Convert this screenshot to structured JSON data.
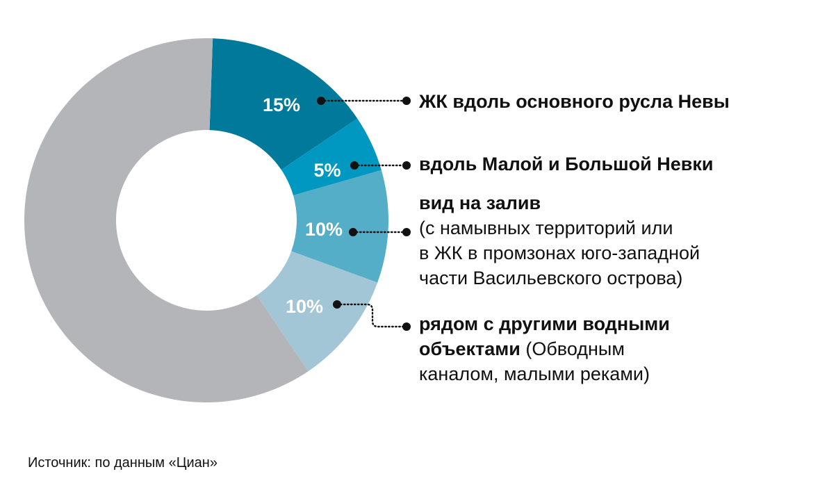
{
  "chart_data": {
    "type": "pie",
    "style": "donut",
    "slices": [
      {
        "value": 15,
        "label": "15%",
        "color": "#00799b",
        "legend_bold": "ЖК вдоль основного русла Невы",
        "legend_normal": ""
      },
      {
        "value": 5,
        "label": "5%",
        "color": "#0097c0",
        "legend_bold": "вдоль Малой и Большой Невки",
        "legend_normal": ""
      },
      {
        "value": 10,
        "label": "10%",
        "color": "#55aec8",
        "legend_bold": "вид на залив",
        "legend_normal": "(с намывных территорий или\nв ЖК в промзонах юго-западной\nчасти Васильевского острова)"
      },
      {
        "value": 10,
        "label": "10%",
        "color": "#a3c6d6",
        "legend_bold": "рядом с другими водными\nобъектами",
        "legend_normal": " (Обводным\nканалом, малыми реками)"
      },
      {
        "value": 60,
        "label": "",
        "color": "#b4b5b8",
        "legend_bold": "",
        "legend_normal": ""
      }
    ],
    "start_angle_deg": 2,
    "direction": "clockwise",
    "legend_placement": "right",
    "legend_marker": "dotted leader line with filled dot",
    "label_color": "#ffffff",
    "leader_color": "#111111"
  },
  "source": "Источник: по данным «Циан»"
}
